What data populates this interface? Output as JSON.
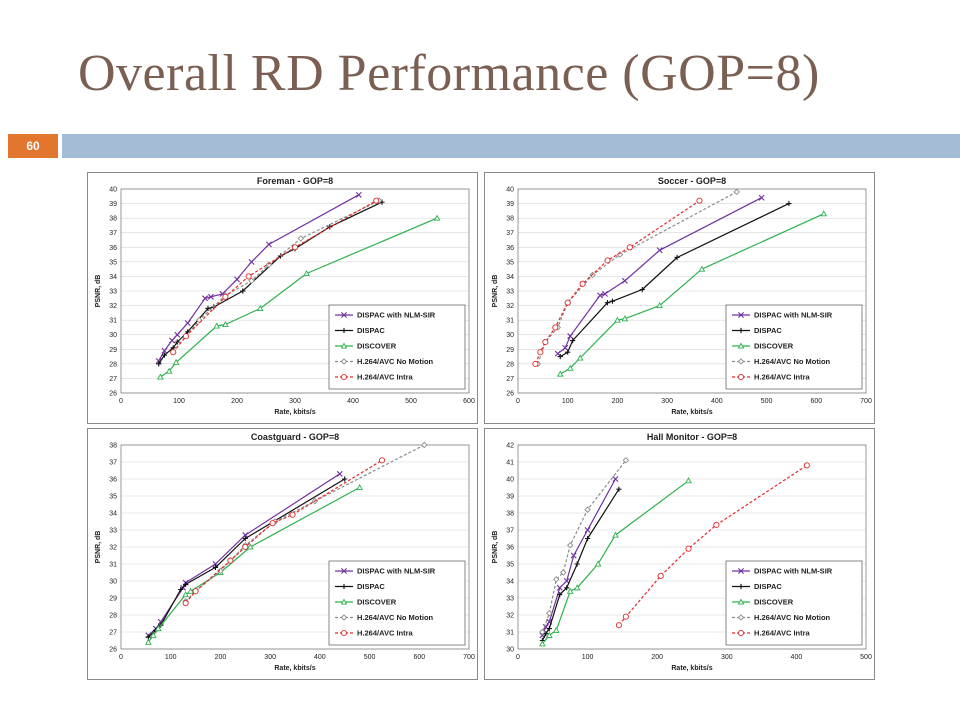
{
  "slide": {
    "title": "Overall RD Performance (GOP=8)",
    "page_number": "60"
  },
  "series_styles": [
    {
      "name": "DISPAC with NLM-SIR",
      "color": "#7030a0",
      "marker": "x",
      "dash": false
    },
    {
      "name": "DISPAC",
      "color": "#111111",
      "marker": "plus",
      "dash": false
    },
    {
      "name": "DISCOVER",
      "color": "#2bb24c",
      "marker": "triangle",
      "dash": false
    },
    {
      "name": "H.264/AVC No Motion",
      "color": "#8c8c8c",
      "marker": "diamond",
      "dash": true
    },
    {
      "name": "H.264/AVC Intra",
      "color": "#e32b2b",
      "marker": "circle",
      "dash": true
    }
  ],
  "chart_data": [
    {
      "type": "line",
      "title": "Foreman - GOP=8",
      "xlabel": "Rate, kbits/s",
      "ylabel": "PSNR, dB",
      "xlim": [
        0,
        600
      ],
      "ylim": [
        26,
        40
      ],
      "xticks": [
        "0",
        "100",
        "200",
        "300",
        "400",
        "500",
        "600"
      ],
      "yticks": [
        "26",
        "27",
        "28",
        "29",
        "30",
        "31",
        "32",
        "33",
        "34",
        "35",
        "36",
        "37",
        "38",
        "39",
        "40"
      ],
      "legend_position": "bottom-right",
      "series": [
        {
          "name": "DISPAC with NLM-SIR",
          "x": [
            65,
            75,
            88,
            97,
            115,
            145,
            155,
            175,
            200,
            225,
            255,
            410
          ],
          "y": [
            28.2,
            28.9,
            29.6,
            30.0,
            30.8,
            32.5,
            32.6,
            32.8,
            33.8,
            35.0,
            36.2,
            39.6
          ]
        },
        {
          "name": "DISPAC",
          "x": [
            65,
            75,
            90,
            97,
            115,
            150,
            160,
            210,
            275,
            300,
            360,
            450
          ],
          "y": [
            28.0,
            28.6,
            29.1,
            29.5,
            30.2,
            31.8,
            31.9,
            33.0,
            35.4,
            35.9,
            37.4,
            39.1
          ]
        },
        {
          "name": "DISCOVER",
          "x": [
            68,
            83,
            95,
            165,
            180,
            240,
            320,
            545
          ],
          "y": [
            27.1,
            27.5,
            28.1,
            30.6,
            30.7,
            31.8,
            34.2,
            38.0
          ]
        },
        {
          "name": "H.264/AVC No Motion",
          "x": [
            90,
            135,
            180,
            225,
            255,
            310,
            445
          ],
          "y": [
            28.8,
            31.0,
            32.7,
            33.7,
            34.8,
            36.6,
            39.2
          ]
        },
        {
          "name": "H.264/AVC Intra",
          "x": [
            90,
            112,
            180,
            220,
            300,
            440
          ],
          "y": [
            28.8,
            29.9,
            32.6,
            34.0,
            36.0,
            39.2
          ]
        }
      ]
    },
    {
      "type": "line",
      "title": "Soccer - GOP=8",
      "xlabel": "Rate, kbits/s",
      "ylabel": "PSNR, dB",
      "xlim": [
        0,
        700
      ],
      "ylim": [
        26,
        40
      ],
      "xticks": [
        "0",
        "100",
        "200",
        "300",
        "400",
        "500",
        "600",
        "700"
      ],
      "yticks": [
        "26",
        "27",
        "28",
        "29",
        "30",
        "31",
        "32",
        "33",
        "34",
        "35",
        "36",
        "37",
        "38",
        "39",
        "40"
      ],
      "legend_position": "bottom-right",
      "series": [
        {
          "name": "DISPAC with NLM-SIR",
          "x": [
            80,
            95,
            105,
            165,
            175,
            215,
            285,
            490
          ],
          "y": [
            28.7,
            29.1,
            29.9,
            32.7,
            32.8,
            33.7,
            35.8,
            39.4
          ]
        },
        {
          "name": "DISPAC",
          "x": [
            85,
            100,
            110,
            180,
            190,
            250,
            320,
            545
          ],
          "y": [
            28.5,
            28.8,
            29.6,
            32.2,
            32.3,
            33.1,
            35.3,
            39.0
          ]
        },
        {
          "name": "DISCOVER",
          "x": [
            85,
            105,
            125,
            200,
            215,
            285,
            370,
            615
          ],
          "y": [
            27.3,
            27.7,
            28.4,
            31.0,
            31.1,
            32.0,
            34.5,
            38.3
          ]
        },
        {
          "name": "H.264/AVC No Motion",
          "x": [
            40,
            55,
            80,
            100,
            150,
            205,
            440
          ],
          "y": [
            28.0,
            29.5,
            30.5,
            32.2,
            34.1,
            35.5,
            39.8
          ]
        },
        {
          "name": "H.264/AVC Intra",
          "x": [
            35,
            45,
            55,
            75,
            100,
            130,
            180,
            225,
            365
          ],
          "y": [
            28.0,
            28.8,
            29.5,
            30.5,
            32.2,
            33.5,
            35.1,
            36.0,
            39.2
          ]
        }
      ]
    },
    {
      "type": "line",
      "title": "Coastguard - GOP=8",
      "xlabel": "Rate, kbits/s",
      "ylabel": "PSNR, dB",
      "xlim": [
        0,
        700
      ],
      "ylim": [
        26,
        38
      ],
      "xticks": [
        "0",
        "100",
        "200",
        "300",
        "400",
        "500",
        "600",
        "700"
      ],
      "yticks": [
        "26",
        "27",
        "28",
        "29",
        "30",
        "31",
        "32",
        "33",
        "34",
        "35",
        "36",
        "37",
        "38"
      ],
      "legend_position": "bottom-right",
      "series": [
        {
          "name": "DISPAC with NLM-SIR",
          "x": [
            55,
            70,
            80,
            125,
            130,
            190,
            250,
            440
          ],
          "y": [
            26.8,
            27.2,
            27.6,
            29.6,
            29.9,
            31.0,
            32.7,
            36.3
          ]
        },
        {
          "name": "DISPAC",
          "x": [
            55,
            70,
            80,
            120,
            130,
            190,
            250,
            450
          ],
          "y": [
            26.7,
            27.1,
            27.4,
            29.5,
            29.8,
            30.8,
            32.5,
            36.0
          ]
        },
        {
          "name": "DISCOVER",
          "x": [
            55,
            65,
            75,
            130,
            140,
            200,
            260,
            480
          ],
          "y": [
            26.4,
            26.8,
            27.2,
            29.2,
            29.4,
            30.5,
            32.0,
            35.5
          ]
        },
        {
          "name": "H.264/AVC No Motion",
          "x": [
            130,
            150,
            200,
            250,
            310,
            390,
            610
          ],
          "y": [
            28.8,
            29.4,
            30.6,
            32.1,
            33.5,
            34.7,
            38.0
          ]
        },
        {
          "name": "H.264/AVC Intra",
          "x": [
            130,
            150,
            220,
            250,
            305,
            345,
            525
          ],
          "y": [
            28.7,
            29.4,
            31.2,
            32.0,
            33.4,
            33.9,
            37.1
          ]
        }
      ]
    },
    {
      "type": "line",
      "title": "Hall Monitor - GOP=8",
      "xlabel": "Rate, kbits/s",
      "ylabel": "PSNR, dB",
      "xlim": [
        0,
        500
      ],
      "ylim": [
        30,
        42
      ],
      "xticks": [
        "0",
        "100",
        "200",
        "300",
        "400",
        "500"
      ],
      "yticks": [
        "30",
        "31",
        "32",
        "33",
        "34",
        "35",
        "36",
        "37",
        "38",
        "39",
        "40",
        "41",
        "42"
      ],
      "legend_position": "bottom-right",
      "series": [
        {
          "name": "DISPAC with NLM-SIR",
          "x": [
            35,
            40,
            45,
            60,
            70,
            80,
            100,
            140
          ],
          "y": [
            30.8,
            31.3,
            31.6,
            33.6,
            34.0,
            35.5,
            37.0,
            40.0
          ]
        },
        {
          "name": "DISPAC",
          "x": [
            35,
            40,
            45,
            60,
            70,
            85,
            100,
            145
          ],
          "y": [
            30.5,
            30.9,
            31.2,
            33.2,
            33.6,
            35.0,
            36.5,
            39.4
          ]
        },
        {
          "name": "DISCOVER",
          "x": [
            35,
            45,
            55,
            75,
            85,
            115,
            140,
            245
          ],
          "y": [
            30.3,
            30.8,
            31.1,
            33.4,
            33.6,
            35.0,
            36.7,
            39.9
          ]
        },
        {
          "name": "H.264/AVC No Motion",
          "x": [
            35,
            45,
            55,
            65,
            75,
            100,
            155
          ],
          "y": [
            31.0,
            32.1,
            34.1,
            34.5,
            36.1,
            38.2,
            41.1
          ]
        },
        {
          "name": "H.264/AVC Intra",
          "x": [
            145,
            155,
            205,
            245,
            285,
            415
          ],
          "y": [
            31.4,
            31.9,
            34.3,
            35.9,
            37.3,
            40.8
          ]
        }
      ]
    }
  ]
}
